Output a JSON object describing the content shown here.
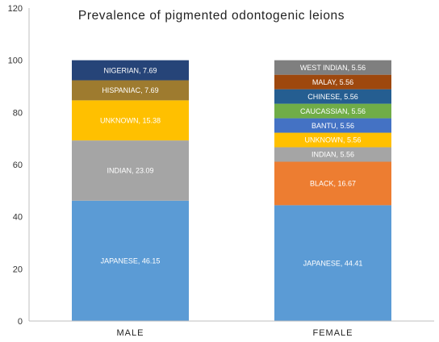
{
  "chart_data": {
    "type": "bar",
    "stacked": true,
    "title": "Prevalence of pigmented odontogenic leions",
    "xlabel": "",
    "ylabel": "",
    "ylim": [
      0,
      120
    ],
    "yticks": [
      "0",
      "20",
      "40",
      "60",
      "80",
      "100",
      "120"
    ],
    "grid": false,
    "legend": "none",
    "categories": [
      "MALE",
      "FEMALE"
    ],
    "bars": [
      {
        "category": "MALE",
        "segments": [
          {
            "label": "JAPANESE, 46.15",
            "value": 46.15,
            "color": "#5b9bd5"
          },
          {
            "label": "INDIAN, 23.09",
            "value": 23.09,
            "color": "#a5a5a5"
          },
          {
            "label": "UNKNOWN, 15.38",
            "value": 15.38,
            "color": "#ffc000"
          },
          {
            "label": "HISPANIAC, 7.69",
            "value": 7.69,
            "color": "#9e7b2f"
          },
          {
            "label": "NIGERIAN, 7.69",
            "value": 7.69,
            "color": "#264478"
          }
        ]
      },
      {
        "category": "FEMALE",
        "segments": [
          {
            "label": "JAPANESE, 44.41",
            "value": 44.41,
            "color": "#5b9bd5"
          },
          {
            "label": "BLACK, 16.67",
            "value": 16.67,
            "color": "#ed7d31"
          },
          {
            "label": "INDIAN, 5.56",
            "value": 5.56,
            "color": "#a5a5a5"
          },
          {
            "label": "UNKNOWN, 5.56",
            "value": 5.56,
            "color": "#ffc000"
          },
          {
            "label": "BANTU, 5.56",
            "value": 5.56,
            "color": "#4472c4"
          },
          {
            "label": "CAUCASSIAN, 5.56",
            "value": 5.56,
            "color": "#70ad47"
          },
          {
            "label": "CHINESE, 5.56",
            "value": 5.56,
            "color": "#255e91"
          },
          {
            "label": "MALAY, 5.56",
            "value": 5.56,
            "color": "#9e480e"
          },
          {
            "label": "WEST INDIAN, 5.56",
            "value": 5.56,
            "color": "#7f7f7f"
          }
        ]
      }
    ]
  }
}
